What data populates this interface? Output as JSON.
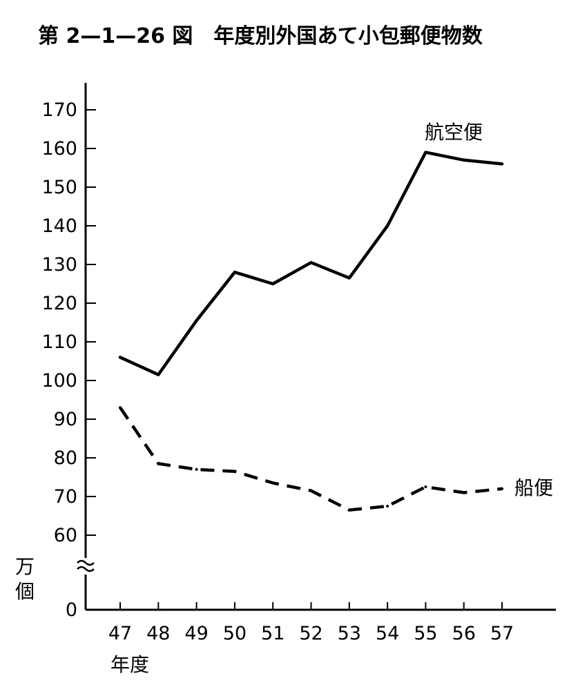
{
  "chart_data": {
    "type": "line",
    "title": "第 2—1—26 図　年度別外国あて小包郵便物数",
    "xlabel": "年度",
    "ylabel": [
      "万",
      "個"
    ],
    "categories": [
      "47",
      "48",
      "49",
      "50",
      "51",
      "52",
      "53",
      "54",
      "55",
      "56",
      "57"
    ],
    "y_ticks": [
      "0",
      "60",
      "70",
      "80",
      "90",
      "100",
      "110",
      "120",
      "130",
      "140",
      "150",
      "160",
      "170"
    ],
    "ylim": [
      0,
      170
    ],
    "axis_break": true,
    "grid": false,
    "legend": "inline labels at line ends",
    "series": [
      {
        "name": "航空便",
        "style": "solid",
        "color": "#000000",
        "values": [
          106,
          101.5,
          115.5,
          128,
          125,
          130.5,
          126.5,
          140,
          159,
          157,
          156
        ]
      },
      {
        "name": "船便",
        "style": "dashed",
        "color": "#000000",
        "values": [
          93,
          78.5,
          77,
          76.5,
          73.5,
          71.5,
          66.5,
          67.5,
          72.5,
          71,
          72
        ]
      }
    ]
  }
}
